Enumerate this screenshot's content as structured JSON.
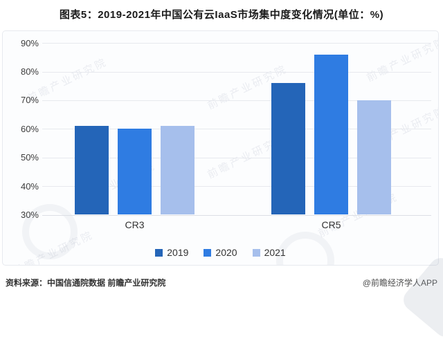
{
  "title": "图表5：2019-2021年中国公有云IaaS市场集中度变化情况(单位：%)",
  "chart_data": {
    "type": "bar",
    "categories": [
      "CR3",
      "CR5"
    ],
    "series": [
      {
        "name": "2019",
        "color": "#2465b8",
        "values": [
          61,
          76
        ]
      },
      {
        "name": "2020",
        "color": "#2f7ce2",
        "values": [
          60,
          86
        ]
      },
      {
        "name": "2021",
        "color": "#a6bfec",
        "values": [
          61,
          70
        ]
      }
    ],
    "title": "2019-2021年中国公有云IaaS市场集中度变化情况",
    "unit": "%",
    "xlabel": "",
    "ylabel": "",
    "ylim": [
      30,
      90
    ],
    "y_ticks": [
      "90%",
      "80%",
      "70%",
      "60%",
      "50%",
      "40%",
      "30%"
    ],
    "grid": true,
    "legend_position": "bottom"
  },
  "footer": {
    "source": "资料来源：中国信通院数据 前瞻产业研究院",
    "brand": "@前瞻经济学人APP"
  },
  "watermark": {
    "text": "前瞻产业研究院"
  }
}
